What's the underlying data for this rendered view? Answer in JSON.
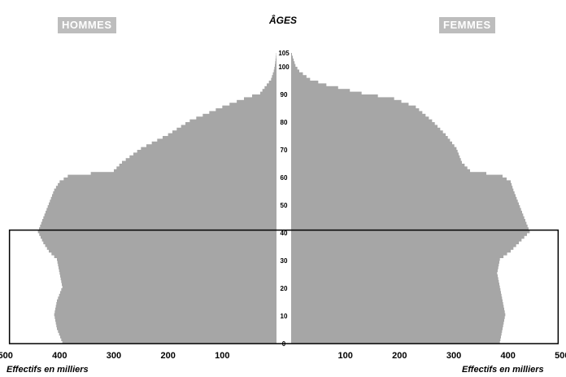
{
  "chart_data": {
    "type": "bar",
    "orientation": "horizontal-pyramid",
    "title": "ÂGES",
    "left_label": "HOMMES",
    "right_label": "FEMMES",
    "xlabel_left": "Effectifs en milliers",
    "xlabel_right": "Effectifs en milliers",
    "x_ticks_left": [
      "500",
      "400",
      "300",
      "200",
      "100"
    ],
    "x_ticks_right": [
      "100",
      "200",
      "300",
      "400",
      "500"
    ],
    "age_ticks": [
      "0",
      "10",
      "20",
      "30",
      "40",
      "50",
      "60",
      "70",
      "80",
      "90",
      "100",
      "105"
    ],
    "xlim": [
      0,
      500
    ],
    "ylim": [
      0,
      105
    ],
    "highlight_box": {
      "age_from": 0,
      "age_to": 41
    },
    "series": [
      {
        "name": "HOMMES",
        "age_points": [
          0,
          5,
          10,
          15,
          20,
          25,
          30,
          33,
          36,
          40,
          45,
          50,
          55,
          58,
          60,
          62,
          65,
          70,
          75,
          80,
          85,
          88,
          90,
          93,
          95,
          98,
          100,
          103,
          105
        ],
        "values": [
          395,
          405,
          410,
          405,
          395,
          400,
          405,
          420,
          430,
          440,
          430,
          420,
          410,
          400,
          385,
          300,
          285,
          250,
          200,
          160,
          100,
          60,
          30,
          18,
          10,
          5,
          3,
          1,
          0
        ]
      },
      {
        "name": "FEMMES",
        "age_points": [
          0,
          5,
          10,
          15,
          20,
          25,
          30,
          33,
          36,
          40,
          45,
          50,
          55,
          58,
          60,
          62,
          65,
          70,
          75,
          80,
          85,
          88,
          90,
          93,
          95,
          98,
          100,
          103,
          105
        ],
        "values": [
          385,
          390,
          395,
          390,
          385,
          380,
          385,
          405,
          420,
          440,
          430,
          420,
          410,
          405,
          390,
          330,
          315,
          305,
          285,
          260,
          230,
          190,
          130,
          65,
          35,
          15,
          8,
          3,
          0
        ]
      }
    ],
    "colors": {
      "bars": "#a6a6a6",
      "label_box": "#bdbdbd",
      "frame": "#000000"
    }
  }
}
